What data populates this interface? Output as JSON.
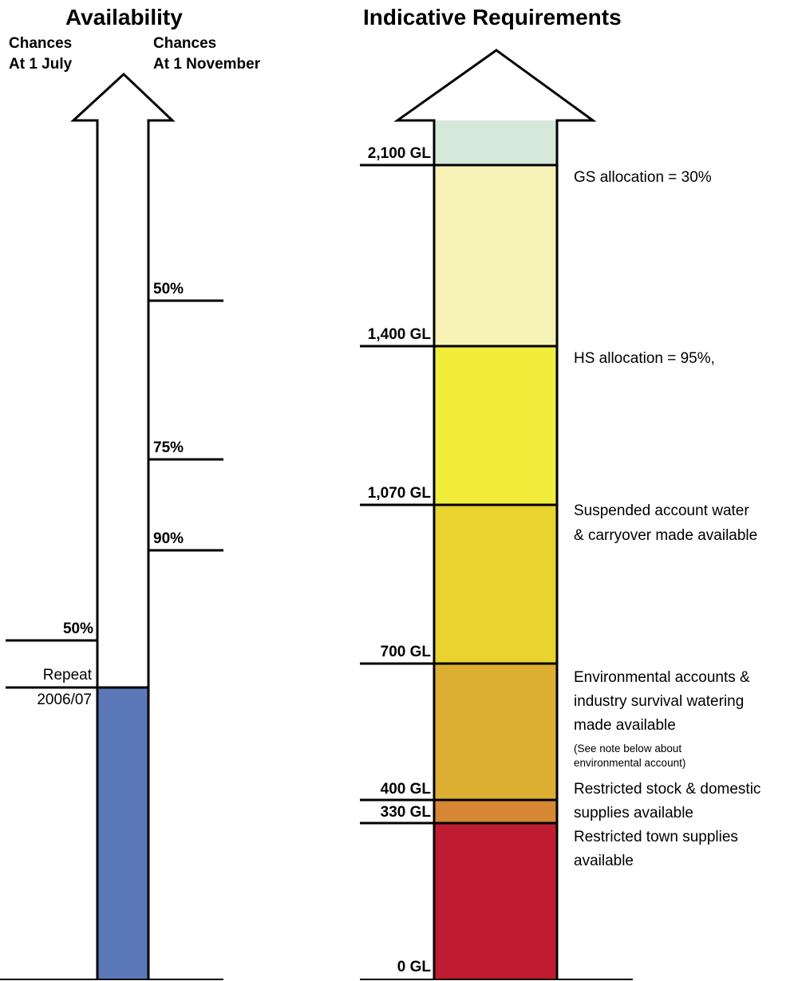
{
  "availability": {
    "title": "Availability",
    "col_july": [
      "Chances",
      "At 1 July"
    ],
    "col_november": [
      "Chances",
      "At 1 November"
    ],
    "november_ticks": [
      "50%",
      "75%",
      "90%"
    ],
    "july_tick": "50%",
    "repeat_label": [
      "Repeat",
      "2006/07"
    ],
    "fill_color": "#5b78b8"
  },
  "requirements": {
    "title": "Indicative Requirements",
    "levels": [
      "2,100 GL",
      "1,400 GL",
      "1,070 GL",
      "700 GL",
      "400 GL",
      "330 GL",
      "0 GL"
    ],
    "bands": [
      {
        "from": "2,100 GL",
        "to": "top",
        "color": "#d5e8d9"
      },
      {
        "from": "1,400 GL",
        "to": "2,100 GL",
        "color": "#f7f3b6"
      },
      {
        "from": "1,070 GL",
        "to": "1,400 GL",
        "color": "#f1ed3a"
      },
      {
        "from": "700 GL",
        "to": "1,070 GL",
        "color": "#e8d32f"
      },
      {
        "from": "400 GL",
        "to": "700 GL",
        "color": "#dcaf33"
      },
      {
        "from": "330 GL",
        "to": "400 GL",
        "color": "#d58733"
      },
      {
        "from": "0 GL",
        "to": "330 GL",
        "color": "#bf1b31"
      }
    ],
    "descriptions": {
      "gs": "GS allocation = 30%",
      "hs": "HS allocation = 95%,",
      "suspended": [
        "Suspended account water",
        "& carryover made available"
      ],
      "environmental": [
        "Environmental accounts &",
        "industry survival watering",
        "made available"
      ],
      "note": [
        "(See note below about",
        "environmental account)"
      ],
      "stock": [
        "Restricted stock & domestic",
        "supplies available"
      ],
      "town": [
        "Restricted town supplies",
        "available"
      ]
    }
  }
}
